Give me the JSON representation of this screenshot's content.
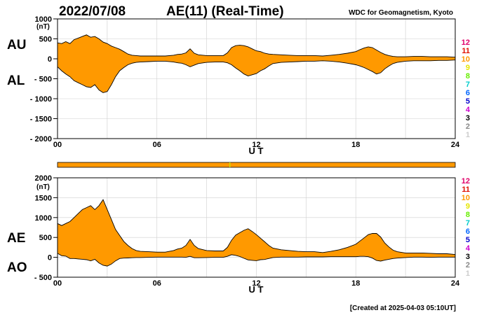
{
  "header": {
    "date": "2022/07/08",
    "title": "AE(11) (Real-Time)",
    "source": "WDC for Geomagnetism, Kyoto"
  },
  "footer": {
    "created": "[Created at 2025-04-03 05:10UT]"
  },
  "colors": {
    "fill": "#ff9900",
    "line": "#000000",
    "grid": "#cfcfcf",
    "status_mark": "#c8e000"
  },
  "status_bar": {
    "color": "#ff9900",
    "marks": [
      10.4
    ]
  },
  "station_levels": [
    {
      "label": "12",
      "color": "#e0006a"
    },
    {
      "label": "11",
      "color": "#e01000"
    },
    {
      "label": "10",
      "color": "#ff9900"
    },
    {
      "label": "9",
      "color": "#e6e600"
    },
    {
      "label": "8",
      "color": "#66ee00"
    },
    {
      "label": "7",
      "color": "#00cccc"
    },
    {
      "label": "6",
      "color": "#0066ff"
    },
    {
      "label": "5",
      "color": "#0000cc"
    },
    {
      "label": "4",
      "color": "#cc00cc"
    },
    {
      "label": "3",
      "color": "#000000"
    },
    {
      "label": "2",
      "color": "#888888"
    },
    {
      "label": "1",
      "color": "#cccccc"
    }
  ],
  "chart_data": [
    {
      "type": "area",
      "series_names": [
        "AU",
        "AL"
      ],
      "unit": "(nT)",
      "xlabel": "U T",
      "xlim": [
        0,
        24
      ],
      "ylim": [
        -2000,
        1000
      ],
      "xticks": [
        "00",
        "06",
        "12",
        "18",
        "24"
      ],
      "xtick_values": [
        0,
        6,
        12,
        18,
        24
      ],
      "yticks": [
        "1000",
        "500",
        "0",
        "- 500",
        "- 1000",
        "- 1500",
        "- 2000"
      ],
      "ytick_values": [
        1000,
        500,
        0,
        -500,
        -1000,
        -1500,
        -2000
      ],
      "grid": true,
      "x": [
        0,
        0.25,
        0.5,
        0.75,
        1,
        1.25,
        1.5,
        1.75,
        2,
        2.25,
        2.5,
        2.75,
        3,
        3.25,
        3.5,
        3.75,
        4,
        4.25,
        4.5,
        4.75,
        5,
        5.5,
        6,
        6.5,
        7,
        7.25,
        7.5,
        7.75,
        8,
        8.25,
        8.5,
        9,
        9.5,
        10,
        10.25,
        10.5,
        10.75,
        11,
        11.25,
        11.5,
        11.75,
        12,
        12.25,
        12.5,
        12.75,
        13,
        13.5,
        14,
        14.5,
        15,
        15.5,
        16,
        16.5,
        17,
        17.5,
        18,
        18.25,
        18.5,
        18.75,
        19,
        19.25,
        19.5,
        19.75,
        20,
        20.25,
        20.5,
        21,
        21.5,
        22,
        22.5,
        23,
        23.5,
        24
      ],
      "series": [
        {
          "name": "AU",
          "values": [
            400,
            380,
            430,
            380,
            480,
            520,
            560,
            600,
            540,
            560,
            500,
            420,
            380,
            320,
            280,
            240,
            180,
            120,
            90,
            80,
            70,
            70,
            70,
            70,
            90,
            110,
            120,
            150,
            250,
            140,
            100,
            80,
            80,
            80,
            150,
            280,
            330,
            340,
            330,
            300,
            250,
            200,
            180,
            140,
            120,
            110,
            100,
            90,
            80,
            80,
            80,
            70,
            90,
            110,
            140,
            180,
            230,
            270,
            300,
            280,
            220,
            160,
            110,
            80,
            60,
            50,
            50,
            60,
            60,
            50,
            50,
            50,
            40
          ]
        },
        {
          "name": "AL",
          "values": [
            -200,
            -300,
            -380,
            -450,
            -550,
            -600,
            -650,
            -700,
            -720,
            -650,
            -780,
            -850,
            -820,
            -650,
            -450,
            -300,
            -220,
            -150,
            -110,
            -90,
            -80,
            -70,
            -60,
            -60,
            -80,
            -100,
            -110,
            -150,
            -200,
            -160,
            -120,
            -90,
            -80,
            -80,
            -100,
            -150,
            -230,
            -300,
            -380,
            -430,
            -400,
            -370,
            -300,
            -250,
            -180,
            -120,
            -90,
            -80,
            -70,
            -60,
            -60,
            -50,
            -60,
            -80,
            -110,
            -150,
            -180,
            -220,
            -270,
            -320,
            -380,
            -350,
            -250,
            -180,
            -120,
            -90,
            -60,
            -50,
            -50,
            -50,
            -40,
            -40,
            -30
          ]
        }
      ]
    },
    {
      "type": "area",
      "series_names": [
        "AE",
        "AO"
      ],
      "unit": "(nT)",
      "xlabel": "U T",
      "xlim": [
        0,
        24
      ],
      "ylim": [
        -500,
        2000
      ],
      "xticks": [
        "00",
        "06",
        "12",
        "18",
        "24"
      ],
      "xtick_values": [
        0,
        6,
        12,
        18,
        24
      ],
      "yticks": [
        "2000",
        "1500",
        "1000",
        "500",
        "0",
        "- 500"
      ],
      "ytick_values": [
        2000,
        1500,
        1000,
        500,
        0,
        -500
      ],
      "grid": true,
      "x": [
        0,
        0.25,
        0.5,
        0.75,
        1,
        1.25,
        1.5,
        1.75,
        2,
        2.25,
        2.5,
        2.75,
        3,
        3.25,
        3.5,
        3.75,
        4,
        4.25,
        4.5,
        4.75,
        5,
        5.5,
        6,
        6.5,
        7,
        7.25,
        7.5,
        7.75,
        8,
        8.25,
        8.5,
        9,
        9.5,
        10,
        10.25,
        10.5,
        10.75,
        11,
        11.25,
        11.5,
        11.75,
        12,
        12.25,
        12.5,
        12.75,
        13,
        13.5,
        14,
        14.5,
        15,
        15.5,
        16,
        16.5,
        17,
        17.5,
        18,
        18.25,
        18.5,
        18.75,
        19,
        19.25,
        19.5,
        19.75,
        20,
        20.25,
        20.5,
        21,
        21.5,
        22,
        22.5,
        23,
        23.5,
        24
      ],
      "series": [
        {
          "name": "AE",
          "values": [
            850,
            800,
            850,
            900,
            1000,
            1100,
            1200,
            1250,
            1300,
            1200,
            1300,
            1450,
            1200,
            950,
            700,
            550,
            400,
            300,
            220,
            170,
            150,
            140,
            130,
            130,
            170,
            210,
            230,
            300,
            450,
            300,
            220,
            170,
            160,
            160,
            250,
            430,
            560,
            620,
            680,
            720,
            650,
            570,
            480,
            390,
            300,
            230,
            190,
            170,
            150,
            140,
            140,
            120,
            150,
            190,
            250,
            330,
            410,
            490,
            570,
            600,
            600,
            510,
            360,
            260,
            180,
            140,
            110,
            110,
            110,
            100,
            90,
            90,
            70
          ]
        },
        {
          "name": "AO",
          "values": [
            100,
            40,
            30,
            -30,
            -30,
            -40,
            -50,
            -60,
            -90,
            -50,
            -140,
            -200,
            -220,
            -170,
            -90,
            -30,
            -20,
            -15,
            -10,
            -5,
            -5,
            0,
            5,
            5,
            5,
            5,
            5,
            0,
            25,
            -10,
            -10,
            -5,
            0,
            0,
            25,
            65,
            50,
            20,
            -25,
            -65,
            -75,
            -85,
            -60,
            -55,
            -30,
            -5,
            5,
            5,
            5,
            10,
            10,
            10,
            15,
            15,
            15,
            15,
            25,
            25,
            15,
            -20,
            -80,
            -95,
            -70,
            -50,
            -30,
            -20,
            -5,
            5,
            5,
            0,
            5,
            5,
            5
          ]
        }
      ]
    }
  ]
}
